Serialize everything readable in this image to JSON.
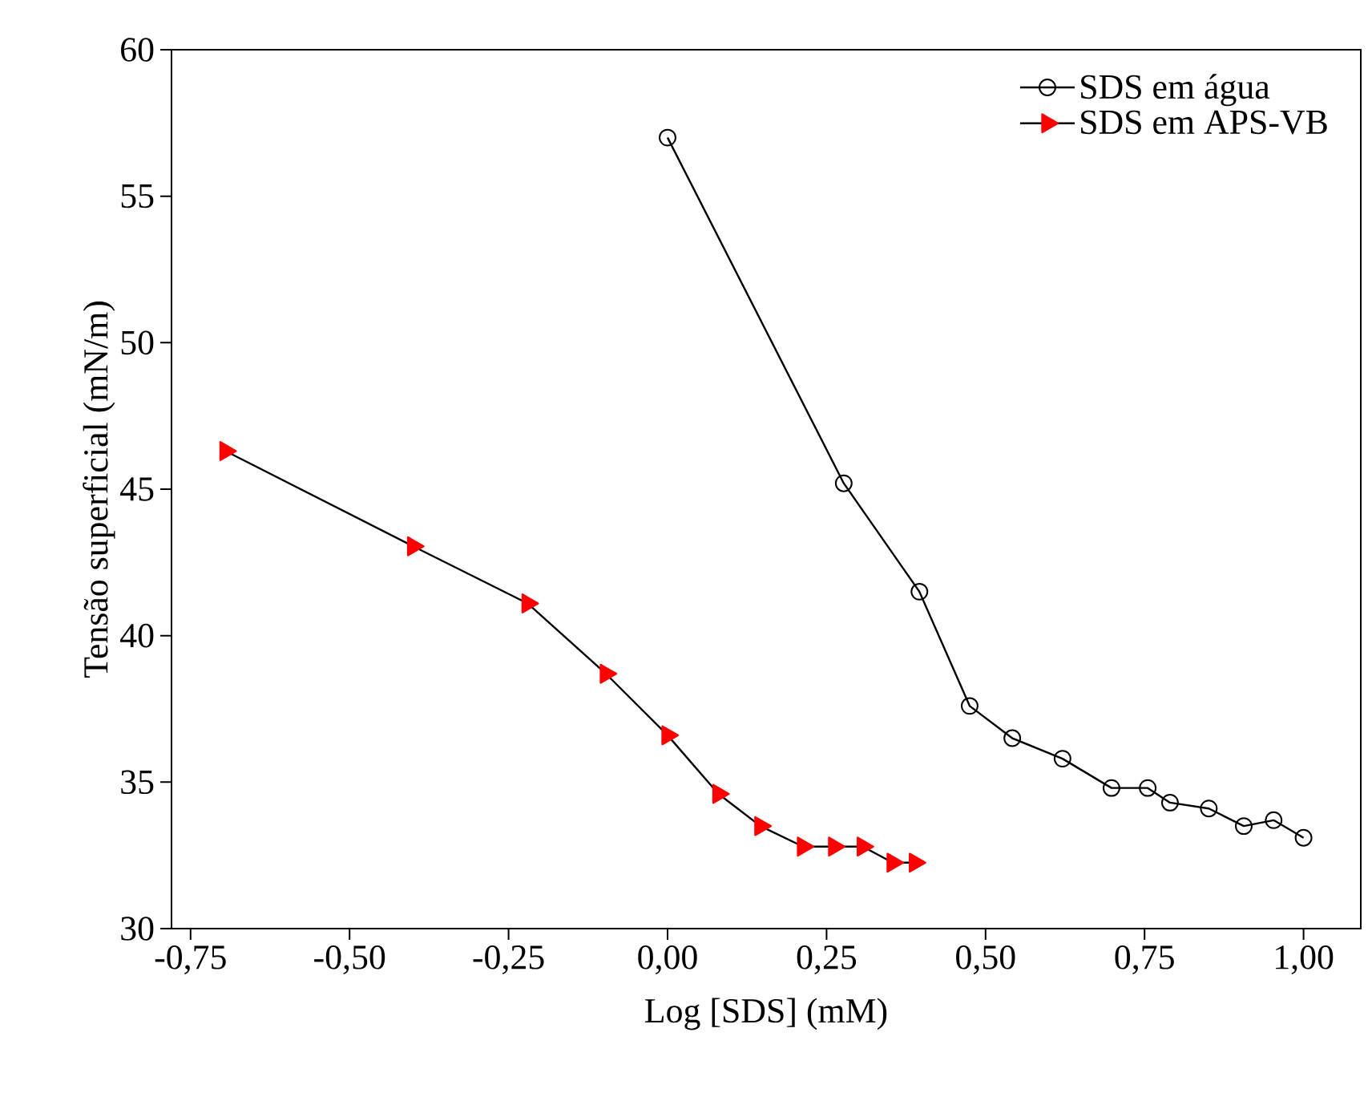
{
  "chart_data": {
    "type": "line",
    "xlabel": "Log [SDS] (mM)",
    "ylabel": "Tensão superficial (mN/m)",
    "xlim": [
      -0.78,
      1.09
    ],
    "ylim": [
      30,
      60
    ],
    "xticks": [
      {
        "value": -0.75,
        "label": "-0,75"
      },
      {
        "value": -0.5,
        "label": "-0,50"
      },
      {
        "value": -0.25,
        "label": "-0,25"
      },
      {
        "value": 0,
        "label": "0,00"
      },
      {
        "value": 0.25,
        "label": "0,25"
      },
      {
        "value": 0.5,
        "label": "0,50"
      },
      {
        "value": 0.75,
        "label": "0,75"
      },
      {
        "value": 1.0,
        "label": "1,00"
      }
    ],
    "yticks": [
      30,
      35,
      40,
      45,
      50,
      55,
      60
    ],
    "legend": "top right",
    "grid": false,
    "series": [
      {
        "name": "SDS em água",
        "color": "#000000",
        "marker": "circle",
        "x": [
          0,
          0.277,
          0.396,
          0.475,
          0.542,
          0.621,
          0.698,
          0.755,
          0.79,
          0.851,
          0.906,
          0.953,
          1.0
        ],
        "values": [
          57.0,
          45.2,
          41.5,
          37.6,
          36.5,
          35.8,
          34.8,
          34.8,
          34.3,
          34.1,
          33.5,
          33.7,
          33.1
        ]
      },
      {
        "name": "SDS em APS-VB",
        "color": "#ff0000",
        "marker": "triangle",
        "x": [
          -0.695,
          -0.4,
          -0.22,
          -0.097,
          0,
          0.08,
          0.146,
          0.213,
          0.262,
          0.307,
          0.354,
          0.389
        ],
        "values": [
          46.3,
          43.05,
          41.1,
          38.7,
          36.6,
          34.6,
          33.5,
          32.8,
          32.8,
          32.8,
          32.25,
          32.25
        ]
      }
    ]
  }
}
